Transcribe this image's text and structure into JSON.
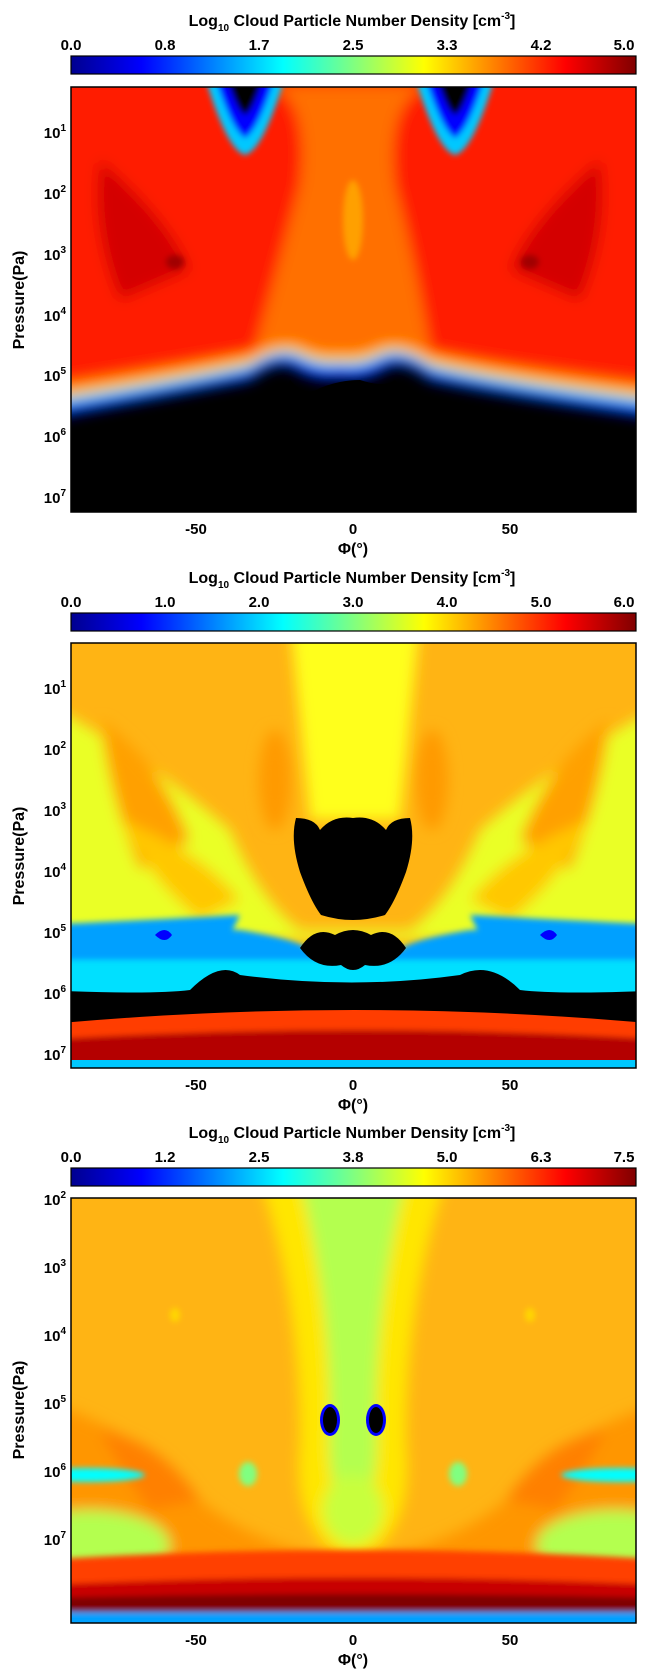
{
  "colormap": [
    "#00008f",
    "#0000ff",
    "#0080ff",
    "#00ffff",
    "#80ff80",
    "#ffff00",
    "#ff8000",
    "#ff0000",
    "#800000"
  ],
  "chart_data": [
    {
      "type": "heatmap",
      "colorbar": {
        "title_main": "Log",
        "title_sub": "10",
        "title_rest": " Cloud Particle Number Density [cm",
        "title_sup": "-3",
        "title_close": "]",
        "ticks": [
          "0.0",
          "0.8",
          "1.7",
          "2.5",
          "3.3",
          "4.2",
          "5.0"
        ],
        "range": [
          0.0,
          5.0
        ]
      },
      "xlabel": "Φ(°)",
      "ylabel": "Pressure(Pa)",
      "xticks": [
        "-50",
        "0",
        "50"
      ],
      "xtick_values": [
        -50,
        0,
        50
      ],
      "xlim": [
        -90,
        90
      ],
      "yticks": [
        {
          "base": "10",
          "exp": "1",
          "log": 1
        },
        {
          "base": "10",
          "exp": "2",
          "log": 2
        },
        {
          "base": "10",
          "exp": "3",
          "log": 3
        },
        {
          "base": "10",
          "exp": "4",
          "log": 4
        },
        {
          "base": "10",
          "exp": "5",
          "log": 5
        },
        {
          "base": "10",
          "exp": "6",
          "log": 6
        },
        {
          "base": "10",
          "exp": "7",
          "log": 7
        }
      ],
      "ylim_log10": [
        0.4,
        7.4
      ],
      "y_log_scale": true,
      "y_inverted": true
    },
    {
      "type": "heatmap",
      "colorbar": {
        "title_main": "Log",
        "title_sub": "10",
        "title_rest": " Cloud Particle Number Density [cm",
        "title_sup": "-3",
        "title_close": "]",
        "ticks": [
          "0.0",
          "1.0",
          "2.0",
          "3.0",
          "4.0",
          "5.0",
          "6.0"
        ],
        "range": [
          0.0,
          6.0
        ]
      },
      "xlabel": "Φ(°)",
      "ylabel": "Pressure(Pa)",
      "xticks": [
        "-50",
        "0",
        "50"
      ],
      "xtick_values": [
        -50,
        0,
        50
      ],
      "xlim": [
        -90,
        90
      ],
      "yticks": [
        {
          "base": "10",
          "exp": "1",
          "log": 1
        },
        {
          "base": "10",
          "exp": "2",
          "log": 2
        },
        {
          "base": "10",
          "exp": "3",
          "log": 3
        },
        {
          "base": "10",
          "exp": "4",
          "log": 4
        },
        {
          "base": "10",
          "exp": "5",
          "log": 5
        },
        {
          "base": "10",
          "exp": "6",
          "log": 6
        },
        {
          "base": "10",
          "exp": "7",
          "log": 7
        }
      ],
      "ylim_log10": [
        0.4,
        7.35
      ],
      "y_log_scale": true,
      "y_inverted": true
    },
    {
      "type": "heatmap",
      "colorbar": {
        "title_main": "Log",
        "title_sub": "10",
        "title_rest": " Cloud Particle Number Density [cm",
        "title_sup": "-3",
        "title_close": "]",
        "ticks": [
          "0.0",
          "1.2",
          "2.5",
          "3.8",
          "5.0",
          "6.3",
          "7.5"
        ],
        "range": [
          0.0,
          7.5
        ]
      },
      "xlabel": "Φ(°)",
      "ylabel": "Pressure(Pa)",
      "xticks": [
        "-50",
        "0",
        "50"
      ],
      "xtick_values": [
        -50,
        0,
        50
      ],
      "xlim": [
        -90,
        90
      ],
      "yticks": [
        {
          "base": "10",
          "exp": "2",
          "log": 2
        },
        {
          "base": "10",
          "exp": "3",
          "log": 3
        },
        {
          "base": "10",
          "exp": "4",
          "log": 4
        },
        {
          "base": "10",
          "exp": "5",
          "log": 5
        },
        {
          "base": "10",
          "exp": "6",
          "log": 6
        },
        {
          "base": "10",
          "exp": "7",
          "log": 7
        }
      ],
      "ylim_log10": [
        1.4,
        7.3
      ],
      "y_log_scale": true,
      "y_inverted": true
    }
  ]
}
